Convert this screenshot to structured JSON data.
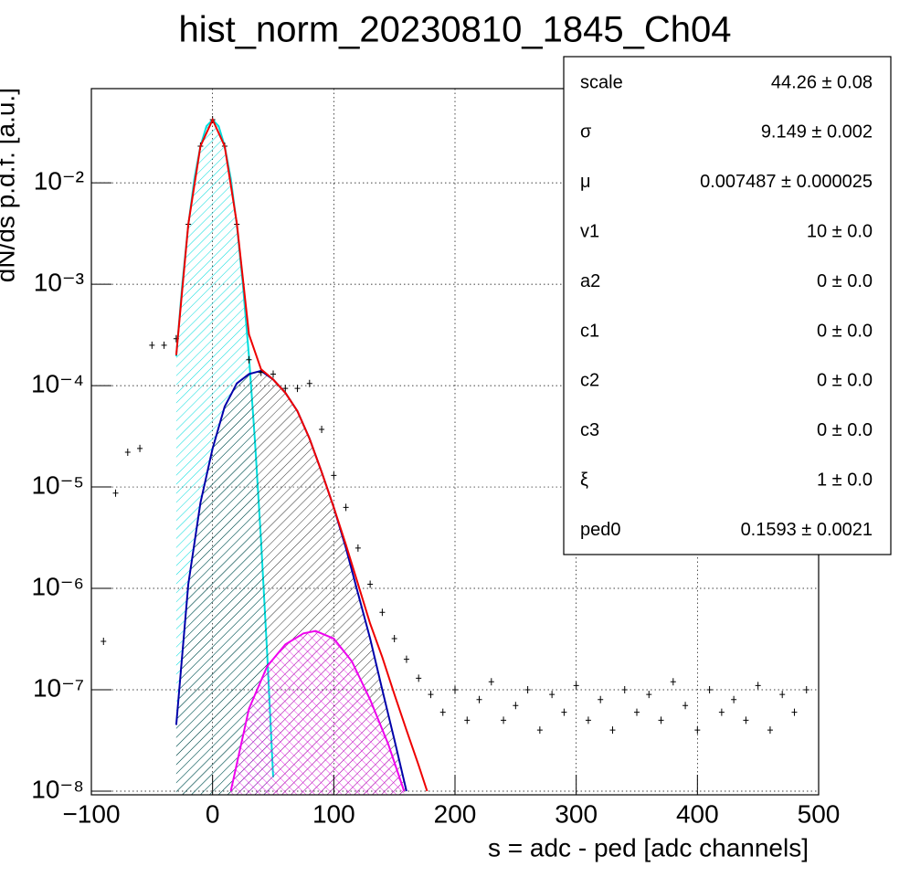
{
  "chart_data": {
    "type": "histogram-fit",
    "title": "hist_norm_20230810_1845_Ch04",
    "x_label": "s = adc - ped [adc channels]",
    "y_label": "dN/ds p.d.f. [a.u.]",
    "log_y": true,
    "grid": true,
    "xlim": [
      -100,
      500
    ],
    "ylim": [
      9.2e-09,
      0.085
    ],
    "xticks": [
      {
        "value": -100,
        "label": "−100"
      },
      0,
      100,
      200,
      300,
      400,
      500
    ],
    "yticks": [
      {
        "value": 1e-08,
        "label": "10⁻⁸"
      },
      {
        "value": 1e-07,
        "label": "10⁻⁷"
      },
      {
        "value": 1e-06,
        "label": "10⁻⁶"
      },
      {
        "value": 1e-05,
        "label": "10⁻⁵"
      },
      {
        "value": 0.0001,
        "label": "10⁻⁴"
      },
      {
        "value": 0.001,
        "label": "10⁻³"
      },
      {
        "value": 0.01,
        "label": "10⁻²"
      }
    ],
    "series": [
      {
        "kind": "points",
        "color": "#000000",
        "x": [
          -90,
          -80,
          -70,
          -60,
          -50,
          -40,
          -30,
          -20,
          -10,
          0,
          10,
          20,
          30,
          40,
          50,
          60,
          70,
          80,
          90,
          100,
          110,
          120,
          130,
          140,
          150,
          160,
          170,
          180,
          190,
          200,
          210,
          220,
          230,
          240,
          250,
          260,
          270,
          280,
          290,
          300,
          310,
          320,
          330,
          340,
          350,
          360,
          370,
          380,
          390,
          400,
          410,
          420,
          430,
          440,
          450,
          460,
          470,
          480,
          490
        ],
        "values": [
          3e-07,
          8.7e-06,
          2.2e-05,
          2.4e-05,
          0.00025,
          0.00025,
          0.00029,
          0.0039,
          0.023,
          0.042,
          0.023,
          0.0039,
          0.00018,
          0.000135,
          0.00013,
          9.4e-05,
          9.4e-05,
          0.000105,
          3.7e-05,
          1.3e-05,
          6.3e-06,
          2.5e-06,
          1.1e-06,
          5.8e-07,
          3.2e-07,
          2e-07,
          1.3e-07,
          9e-08,
          6e-08,
          1e-07,
          5e-08,
          8e-08,
          1.2e-07,
          5e-08,
          7e-08,
          1e-07,
          4e-08,
          9e-08,
          6e-08,
          1.1e-07,
          5e-08,
          8e-08,
          4e-08,
          1e-07,
          6e-08,
          9e-08,
          5e-08,
          1.2e-07,
          7e-08,
          4e-08,
          1e-07,
          6e-08,
          8e-08,
          5e-08,
          1.1e-07,
          4e-08,
          9e-08,
          6e-08,
          1e-07
        ]
      },
      {
        "kind": "curve",
        "color": "#00dddd",
        "fill": "hatch",
        "x": [
          -30,
          -25,
          -20,
          -15,
          -10,
          -5,
          0,
          5,
          10,
          15,
          20,
          25,
          30,
          35,
          40,
          45,
          50
        ],
        "values": [
          0.000194,
          0.001,
          0.00385,
          0.011,
          0.0231,
          0.0362,
          0.042,
          0.0362,
          0.0231,
          0.011,
          0.00385,
          0.001,
          0.000194,
          2.8e-05,
          2.97e-06,
          2.3e-07,
          1.37e-08
        ]
      },
      {
        "kind": "curve",
        "color": "#0000aa",
        "fill": "hatch",
        "x": [
          -30,
          -20,
          -10,
          0,
          10,
          20,
          30,
          40,
          50,
          60,
          70,
          80,
          90,
          100,
          110,
          120,
          130,
          140,
          150,
          160
        ],
        "values": [
          4.5e-08,
          1.1e-06,
          7e-06,
          2.4e-05,
          6.2e-05,
          0.000105,
          0.00013,
          0.00014,
          0.000115,
          8.5e-05,
          5.6e-05,
          3e-05,
          1.4e-05,
          6.3e-06,
          2.5e-06,
          8.9e-07,
          3.2e-07,
          1e-07,
          3.2e-08,
          1e-08
        ]
      },
      {
        "kind": "curve",
        "color": "#ee00ee",
        "fill": "crosshatch",
        "x": [
          15,
          30,
          45,
          60,
          75,
          85,
          100,
          115,
          130,
          145,
          158
        ],
        "values": [
          1e-08,
          6.5e-08,
          1.7e-07,
          2.8e-07,
          3.6e-07,
          3.8e-07,
          3.2e-07,
          1.9e-07,
          8e-08,
          2.9e-08,
          1e-08
        ]
      },
      {
        "kind": "curve",
        "color": "#ee0000",
        "x": [
          -30,
          -20,
          -10,
          0,
          10,
          20,
          30,
          40,
          50,
          60,
          70,
          80,
          90,
          100,
          110,
          120,
          130,
          140,
          150,
          160,
          170,
          177
        ],
        "values": [
          0.0002,
          0.0039,
          0.023,
          0.042,
          0.023,
          0.004,
          0.00032,
          0.000145,
          0.000115,
          8.5e-05,
          5.6e-05,
          3e-05,
          1.4e-05,
          6.3e-06,
          2.7e-06,
          1.1e-06,
          4.5e-07,
          2.1e-07,
          9e-08,
          4e-08,
          1.8e-08,
          1e-08
        ]
      }
    ],
    "stats": [
      {
        "name": "scale",
        "value": "44.26 ± 0.08"
      },
      {
        "name": "σ",
        "value": "9.149 ± 0.002"
      },
      {
        "name": "μ",
        "value": "0.007487 ± 0.000025"
      },
      {
        "name": "v1",
        "value": "10 ± 0.0"
      },
      {
        "name": "a2",
        "value": "0 ± 0.0"
      },
      {
        "name": "c1",
        "value": "0 ± 0.0"
      },
      {
        "name": "c2",
        "value": "0 ± 0.0"
      },
      {
        "name": "c3",
        "value": "0 ± 0.0"
      },
      {
        "name": "ξ",
        "value": "1 ± 0.0"
      },
      {
        "name": "ped0",
        "value": "0.1593 ± 0.0021"
      }
    ]
  }
}
